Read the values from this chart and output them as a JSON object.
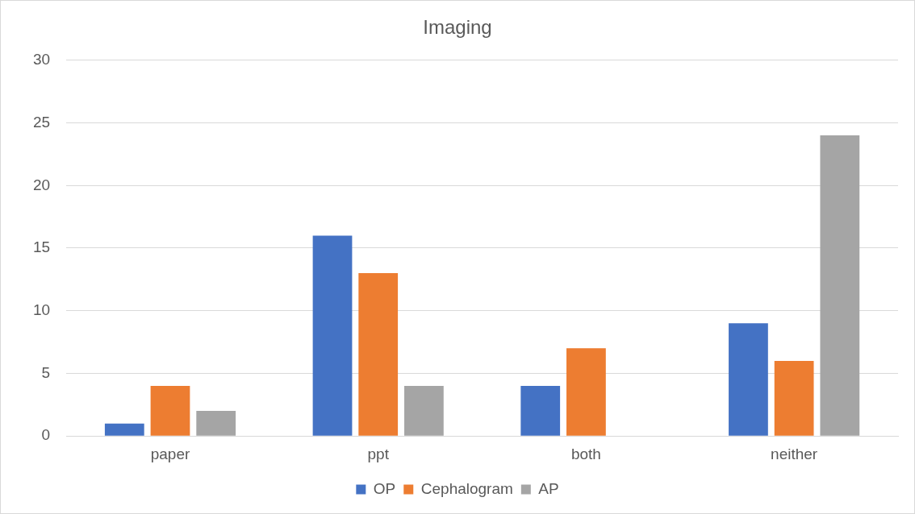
{
  "chart_data": {
    "type": "bar",
    "title": "Imaging",
    "categories": [
      "paper",
      "ppt",
      "both",
      "neither"
    ],
    "series": [
      {
        "name": "OP",
        "color": "#4472c4",
        "values": [
          1,
          16,
          4,
          9
        ]
      },
      {
        "name": "Cephalogram",
        "color": "#ed7d31",
        "values": [
          4,
          13,
          7,
          6
        ]
      },
      {
        "name": "AP",
        "color": "#a5a5a5",
        "values": [
          2,
          4,
          0,
          24
        ]
      }
    ],
    "ylim": [
      0,
      30
    ],
    "yticks": [
      0,
      5,
      10,
      15,
      20,
      25,
      30
    ],
    "grid": "y",
    "legend": "bottom"
  }
}
